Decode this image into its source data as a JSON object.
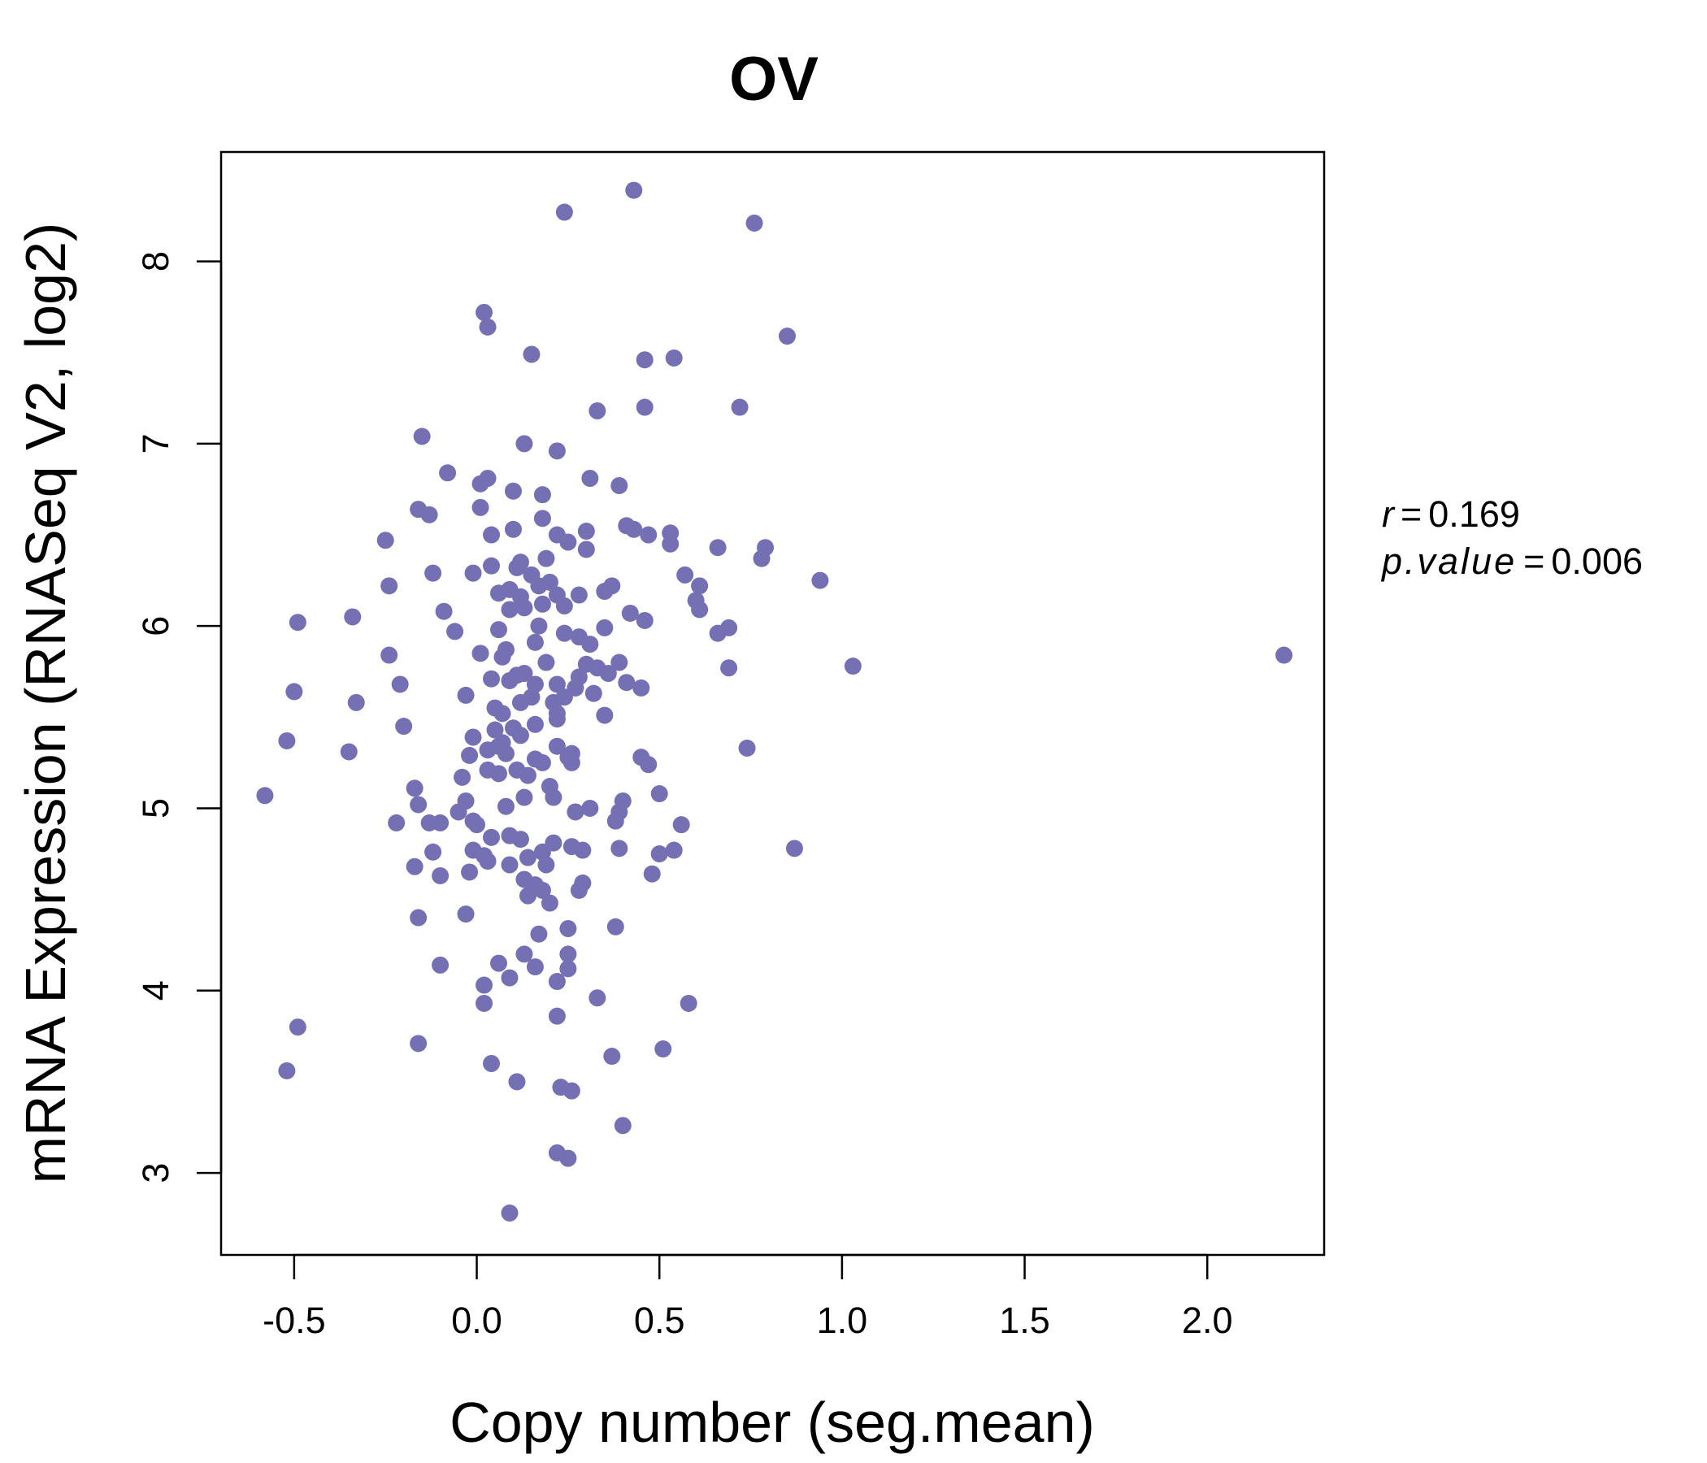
{
  "chart_data": {
    "type": "scatter",
    "title": "OV",
    "xlabel": "Copy number (seg.mean)",
    "ylabel": "mRNA Expression (RNASeq V2, log2)",
    "xlim": [
      -0.7,
      2.32
    ],
    "ylim": [
      2.55,
      8.6
    ],
    "xticks": [
      "-0.5",
      "0.0",
      "0.5",
      "1.0",
      "1.5",
      "2.0"
    ],
    "yticks": [
      "3",
      "4",
      "5",
      "6",
      "7",
      "8"
    ],
    "point_color": "#7570b3",
    "stats": {
      "r_label": "r",
      "r_value": "0.169",
      "p_label": "p.value",
      "p_value": "0.006"
    },
    "points": [
      [
        0.43,
        8.39
      ],
      [
        0.24,
        8.27
      ],
      [
        0.76,
        8.21
      ],
      [
        0.02,
        7.72
      ],
      [
        0.03,
        7.64
      ],
      [
        0.15,
        7.49
      ],
      [
        0.46,
        7.46
      ],
      [
        0.54,
        7.47
      ],
      [
        0.85,
        7.59
      ],
      [
        0.33,
        7.18
      ],
      [
        0.46,
        7.2
      ],
      [
        0.72,
        7.2
      ],
      [
        -0.15,
        7.04
      ],
      [
        0.13,
        7.0
      ],
      [
        0.22,
        6.96
      ],
      [
        -0.08,
        6.84
      ],
      [
        0.01,
        6.78
      ],
      [
        0.03,
        6.81
      ],
      [
        0.1,
        6.74
      ],
      [
        0.18,
        6.72
      ],
      [
        0.31,
        6.81
      ],
      [
        0.39,
        6.77
      ],
      [
        -0.16,
        6.64
      ],
      [
        -0.13,
        6.61
      ],
      [
        0.01,
        6.65
      ],
      [
        0.18,
        6.59
      ],
      [
        -0.25,
        6.47
      ],
      [
        0.04,
        6.5
      ],
      [
        0.1,
        6.53
      ],
      [
        0.22,
        6.5
      ],
      [
        0.25,
        6.46
      ],
      [
        0.3,
        6.52
      ],
      [
        0.41,
        6.55
      ],
      [
        0.43,
        6.53
      ],
      [
        0.47,
        6.5
      ],
      [
        0.53,
        6.51
      ],
      [
        0.53,
        6.45
      ],
      [
        0.66,
        6.43
      ],
      [
        0.79,
        6.43
      ],
      [
        0.78,
        6.37
      ],
      [
        0.94,
        6.25
      ],
      [
        -0.12,
        6.29
      ],
      [
        -0.01,
        6.29
      ],
      [
        0.04,
        6.33
      ],
      [
        0.11,
        6.32
      ],
      [
        0.12,
        6.35
      ],
      [
        0.15,
        6.28
      ],
      [
        0.19,
        6.37
      ],
      [
        0.3,
        6.42
      ],
      [
        0.57,
        6.28
      ],
      [
        0.61,
        6.22
      ],
      [
        -0.24,
        6.22
      ],
      [
        0.06,
        6.18
      ],
      [
        0.09,
        6.2
      ],
      [
        0.12,
        6.16
      ],
      [
        0.17,
        6.22
      ],
      [
        0.2,
        6.24
      ],
      [
        0.22,
        6.17
      ],
      [
        0.28,
        6.17
      ],
      [
        0.35,
        6.19
      ],
      [
        0.37,
        6.22
      ],
      [
        0.6,
        6.14
      ],
      [
        0.61,
        6.09
      ],
      [
        -0.49,
        6.02
      ],
      [
        -0.34,
        6.05
      ],
      [
        -0.09,
        6.08
      ],
      [
        0.09,
        6.09
      ],
      [
        0.13,
        6.1
      ],
      [
        0.18,
        6.12
      ],
      [
        0.24,
        6.11
      ],
      [
        0.42,
        6.07
      ],
      [
        0.46,
        6.03
      ],
      [
        -0.06,
        5.97
      ],
      [
        0.06,
        5.98
      ],
      [
        0.17,
        6.0
      ],
      [
        0.24,
        5.96
      ],
      [
        0.28,
        5.94
      ],
      [
        0.31,
        5.9
      ],
      [
        0.35,
        5.99
      ],
      [
        0.66,
        5.96
      ],
      [
        0.69,
        5.99
      ],
      [
        -0.24,
        5.84
      ],
      [
        0.01,
        5.85
      ],
      [
        0.07,
        5.83
      ],
      [
        0.08,
        5.87
      ],
      [
        0.16,
        5.91
      ],
      [
        0.19,
        5.8
      ],
      [
        0.3,
        5.79
      ],
      [
        0.33,
        5.77
      ],
      [
        0.39,
        5.8
      ],
      [
        0.36,
        5.74
      ],
      [
        0.69,
        5.77
      ],
      [
        1.03,
        5.78
      ],
      [
        2.21,
        5.84
      ],
      [
        -0.21,
        5.68
      ],
      [
        0.04,
        5.71
      ],
      [
        0.09,
        5.7
      ],
      [
        0.11,
        5.73
      ],
      [
        0.13,
        5.74
      ],
      [
        0.16,
        5.68
      ],
      [
        0.22,
        5.68
      ],
      [
        0.27,
        5.66
      ],
      [
        0.28,
        5.72
      ],
      [
        0.32,
        5.63
      ],
      [
        0.41,
        5.69
      ],
      [
        0.45,
        5.66
      ],
      [
        -0.5,
        5.64
      ],
      [
        -0.33,
        5.58
      ],
      [
        -0.03,
        5.62
      ],
      [
        0.05,
        5.55
      ],
      [
        0.07,
        5.52
      ],
      [
        0.12,
        5.58
      ],
      [
        0.15,
        5.61
      ],
      [
        0.21,
        5.58
      ],
      [
        0.22,
        5.52
      ],
      [
        0.24,
        5.61
      ],
      [
        0.35,
        5.51
      ],
      [
        -0.2,
        5.45
      ],
      [
        -0.01,
        5.39
      ],
      [
        0.05,
        5.43
      ],
      [
        0.07,
        5.36
      ],
      [
        0.1,
        5.44
      ],
      [
        0.12,
        5.4
      ],
      [
        0.16,
        5.46
      ],
      [
        0.22,
        5.49
      ],
      [
        -0.52,
        5.37
      ],
      [
        -0.35,
        5.31
      ],
      [
        -0.02,
        5.29
      ],
      [
        0.03,
        5.32
      ],
      [
        0.06,
        5.34
      ],
      [
        0.08,
        5.3
      ],
      [
        0.16,
        5.27
      ],
      [
        0.22,
        5.34
      ],
      [
        0.25,
        5.28
      ],
      [
        0.26,
        5.3
      ],
      [
        0.45,
        5.28
      ],
      [
        0.47,
        5.24
      ],
      [
        0.74,
        5.33
      ],
      [
        0.03,
        5.21
      ],
      [
        0.06,
        5.19
      ],
      [
        0.11,
        5.21
      ],
      [
        0.14,
        5.18
      ],
      [
        0.18,
        5.25
      ],
      [
        0.2,
        5.12
      ],
      [
        0.26,
        5.25
      ],
      [
        -0.04,
        5.17
      ],
      [
        -0.17,
        5.11
      ],
      [
        -0.58,
        5.07
      ],
      [
        -0.16,
        5.02
      ],
      [
        -0.03,
        5.04
      ],
      [
        0.08,
        5.01
      ],
      [
        0.13,
        5.06
      ],
      [
        0.21,
        5.06
      ],
      [
        0.27,
        4.98
      ],
      [
        0.31,
        5.0
      ],
      [
        0.4,
        5.04
      ],
      [
        0.5,
        5.08
      ],
      [
        -0.22,
        4.92
      ],
      [
        -0.13,
        4.92
      ],
      [
        -0.1,
        4.92
      ],
      [
        -0.05,
        4.98
      ],
      [
        -0.01,
        4.93
      ],
      [
        0.0,
        4.91
      ],
      [
        0.39,
        4.98
      ],
      [
        0.38,
        4.93
      ],
      [
        0.56,
        4.91
      ],
      [
        0.09,
        4.85
      ],
      [
        0.12,
        4.83
      ],
      [
        0.21,
        4.81
      ],
      [
        0.04,
        4.84
      ],
      [
        -0.01,
        4.77
      ],
      [
        0.02,
        4.74
      ],
      [
        0.03,
        4.71
      ],
      [
        -0.12,
        4.76
      ],
      [
        0.14,
        4.73
      ],
      [
        0.18,
        4.76
      ],
      [
        0.26,
        4.79
      ],
      [
        0.29,
        4.77
      ],
      [
        0.39,
        4.78
      ],
      [
        0.5,
        4.75
      ],
      [
        0.54,
        4.77
      ],
      [
        0.87,
        4.78
      ],
      [
        -0.17,
        4.68
      ],
      [
        -0.1,
        4.63
      ],
      [
        -0.02,
        4.65
      ],
      [
        0.09,
        4.69
      ],
      [
        0.13,
        4.61
      ],
      [
        0.16,
        4.58
      ],
      [
        0.19,
        4.69
      ],
      [
        0.29,
        4.59
      ],
      [
        0.48,
        4.64
      ],
      [
        0.14,
        4.52
      ],
      [
        0.18,
        4.55
      ],
      [
        0.2,
        4.48
      ],
      [
        0.28,
        4.55
      ],
      [
        -0.03,
        4.42
      ],
      [
        -0.16,
        4.4
      ],
      [
        0.17,
        4.31
      ],
      [
        0.25,
        4.34
      ],
      [
        0.38,
        4.35
      ],
      [
        0.13,
        4.2
      ],
      [
        0.25,
        4.2
      ],
      [
        0.06,
        4.15
      ],
      [
        0.16,
        4.13
      ],
      [
        0.25,
        4.12
      ],
      [
        -0.1,
        4.14
      ],
      [
        0.09,
        4.07
      ],
      [
        0.22,
        4.05
      ],
      [
        0.02,
        4.03
      ],
      [
        0.02,
        3.93
      ],
      [
        0.33,
        3.96
      ],
      [
        0.58,
        3.93
      ],
      [
        0.22,
        3.86
      ],
      [
        -0.49,
        3.8
      ],
      [
        -0.16,
        3.71
      ],
      [
        0.04,
        3.6
      ],
      [
        0.37,
        3.64
      ],
      [
        0.51,
        3.68
      ],
      [
        -0.52,
        3.56
      ],
      [
        0.11,
        3.5
      ],
      [
        0.23,
        3.47
      ],
      [
        0.26,
        3.45
      ],
      [
        0.4,
        3.26
      ],
      [
        0.22,
        3.11
      ],
      [
        0.25,
        3.08
      ],
      [
        0.09,
        2.78
      ]
    ]
  }
}
